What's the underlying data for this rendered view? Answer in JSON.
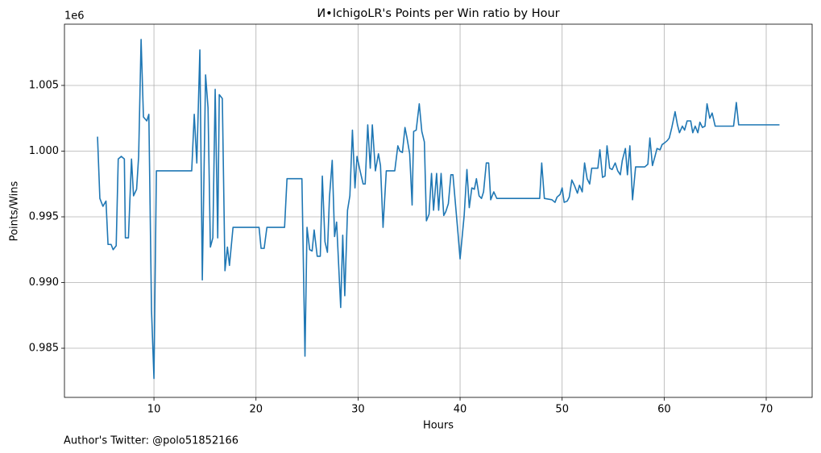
{
  "chart_data": {
    "type": "line",
    "title": "И•IchigoLR's Points per Win ratio by Hour",
    "xlabel": "Hours",
    "ylabel": "Points/Wins",
    "y_offset_label": "1e6",
    "footer": "Author's Twitter: @polo51852166",
    "color": "#1f77b4",
    "grid": true,
    "xlim": [
      1.23,
      74.5
    ],
    "ylim": [
      981260,
      1009660
    ],
    "xticks": [
      10,
      20,
      30,
      40,
      50,
      60,
      70
    ],
    "yticks": [
      {
        "value": 985000,
        "label": "0.985"
      },
      {
        "value": 990000,
        "label": "0.990"
      },
      {
        "value": 995000,
        "label": "0.995"
      },
      {
        "value": 1000000,
        "label": "1.000"
      },
      {
        "value": 1005000,
        "label": "1.005"
      }
    ],
    "x": [
      4.47,
      4.7,
      5.0,
      5.3,
      5.5,
      5.8,
      6.0,
      6.3,
      6.5,
      6.8,
      7.1,
      7.2,
      7.5,
      7.8,
      8.0,
      8.3,
      8.5,
      8.74,
      8.97,
      9.3,
      9.5,
      9.76,
      10.0,
      10.24,
      13.7,
      13.95,
      14.2,
      14.5,
      14.74,
      15.06,
      15.3,
      15.53,
      15.77,
      16.0,
      16.25,
      16.4,
      16.7,
      16.96,
      17.2,
      17.4,
      17.75,
      20.3,
      20.5,
      20.8,
      21.07,
      22.8,
      23.04,
      24.5,
      24.8,
      25.0,
      25.26,
      25.5,
      25.7,
      26.0,
      26.3,
      26.5,
      26.76,
      27.0,
      27.2,
      27.47,
      27.7,
      27.9,
      28.3,
      28.5,
      28.7,
      28.97,
      29.2,
      29.45,
      29.7,
      29.9,
      30.2,
      30.5,
      30.7,
      30.95,
      31.2,
      31.4,
      31.7,
      32.0,
      32.2,
      32.45,
      32.77,
      33.6,
      33.9,
      34.1,
      34.35,
      34.6,
      34.8,
      35.06,
      35.3,
      35.45,
      35.7,
      36.0,
      36.25,
      36.5,
      36.7,
      36.96,
      37.2,
      37.4,
      37.7,
      37.9,
      38.14,
      38.4,
      38.6,
      38.85,
      39.1,
      39.3,
      39.8,
      40.0,
      40.4,
      40.67,
      40.9,
      41.15,
      41.4,
      41.6,
      41.86,
      42.1,
      42.3,
      42.57,
      42.8,
      43.0,
      43.3,
      43.6,
      47.8,
      48.0,
      48.26,
      49.0,
      49.3,
      49.5,
      49.8,
      50.0,
      50.2,
      50.5,
      50.7,
      50.95,
      51.2,
      51.5,
      51.7,
      51.97,
      52.2,
      52.45,
      52.7,
      52.9,
      53.5,
      53.7,
      53.96,
      54.2,
      54.4,
      54.66,
      54.9,
      55.2,
      55.45,
      55.7,
      55.9,
      56.2,
      56.4,
      56.64,
      56.9,
      57.2,
      58.1,
      58.4,
      58.6,
      58.85,
      59.1,
      59.3,
      59.6,
      59.8,
      60.0,
      60.3,
      60.5,
      60.75,
      61.07,
      61.3,
      61.5,
      61.78,
      62.0,
      62.25,
      62.6,
      62.8,
      63.04,
      63.3,
      63.5,
      63.75,
      64.0,
      64.2,
      64.47,
      64.7,
      65.0,
      66.8,
      67.07,
      67.3,
      71.3
    ],
    "values": [
      1001100,
      996400,
      995800,
      996200,
      992900,
      992900,
      992500,
      992800,
      999400,
      999600,
      999400,
      993400,
      993400,
      999400,
      996600,
      997100,
      999600,
      1008500,
      1002600,
      1002300,
      1002800,
      987900,
      982700,
      998500,
      998500,
      1002800,
      999100,
      1007700,
      990200,
      1005800,
      1003300,
      992700,
      993400,
      1004700,
      993400,
      1004300,
      1004000,
      990900,
      992700,
      991300,
      994200,
      994200,
      992600,
      992600,
      994200,
      994200,
      997900,
      997900,
      984400,
      994200,
      992500,
      992400,
      994000,
      992000,
      992000,
      998100,
      993100,
      992300,
      996500,
      999300,
      993500,
      994600,
      988100,
      993600,
      989000,
      995500,
      996600,
      1001600,
      997200,
      999600,
      998500,
      997500,
      997500,
      1002000,
      998700,
      1002000,
      998500,
      999800,
      998900,
      994200,
      998500,
      998500,
      1000400,
      1000000,
      999900,
      1001800,
      1001000,
      999800,
      995900,
      1001500,
      1001600,
      1003600,
      1001500,
      1000700,
      994700,
      995200,
      998300,
      995500,
      998300,
      995500,
      998300,
      995100,
      995400,
      996000,
      998200,
      998200,
      993700,
      991800,
      995100,
      998600,
      995700,
      997200,
      997100,
      997900,
      996600,
      996400,
      996900,
      999100,
      999100,
      996300,
      996900,
      996400,
      996400,
      999100,
      996400,
      996300,
      996100,
      996500,
      996700,
      997200,
      996100,
      996200,
      996500,
      997800,
      997400,
      996800,
      997400,
      996900,
      999100,
      997900,
      997500,
      998700,
      998700,
      1000100,
      998000,
      998100,
      1000400,
      998700,
      998600,
      999100,
      998500,
      998200,
      999300,
      1000200,
      998200,
      1000400,
      996300,
      998800,
      998800,
      999000,
      1001000,
      998900,
      999600,
      1000200,
      1000100,
      1000500,
      1000600,
      1000800,
      1001000,
      1001800,
      1003000,
      1002000,
      1001400,
      1001900,
      1001600,
      1002300,
      1002300,
      1001400,
      1001900,
      1001400,
      1002200,
      1001800,
      1001900,
      1003600,
      1002500,
      1002900,
      1001900,
      1001900,
      1003700,
      1002000,
      1002000
    ]
  }
}
